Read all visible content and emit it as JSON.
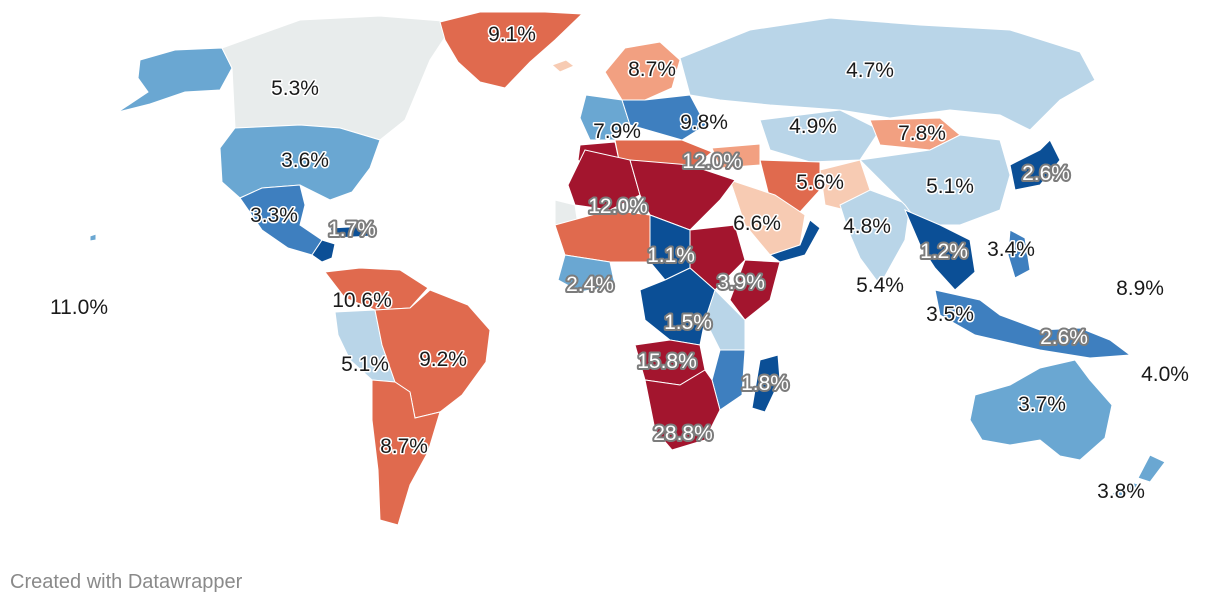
{
  "map": {
    "colors": {
      "deep_red": "#a3152e",
      "red": "#e06a4e",
      "salmon": "#f2a081",
      "peach": "#f7cbb3",
      "neutral": "#e8ecec",
      "light_blue": "#b9d5e8",
      "blue": "#6aa7d2",
      "mid_blue": "#3e7fbf",
      "dark_blue": "#0b4f96"
    },
    "labels": [
      {
        "text": "9.1%"
      },
      {
        "text": "8.7%"
      },
      {
        "text": "4.7%"
      },
      {
        "text": "5.3%"
      },
      {
        "text": "9.8%"
      },
      {
        "text": "7.9%"
      },
      {
        "text": "4.9%"
      },
      {
        "text": "7.8%"
      },
      {
        "text": "3.6%"
      },
      {
        "text": "12.0%"
      },
      {
        "text": "2.6%"
      },
      {
        "text": "5.6%"
      },
      {
        "text": "5.1%"
      },
      {
        "text": "12.0%"
      },
      {
        "text": "3.3%"
      },
      {
        "text": "1.7%"
      },
      {
        "text": "6.6%"
      },
      {
        "text": "4.8%"
      },
      {
        "text": "1.1%"
      },
      {
        "text": "1.2%"
      },
      {
        "text": "3.4%"
      },
      {
        "text": "2.4%"
      },
      {
        "text": "3.9%"
      },
      {
        "text": "5.4%"
      },
      {
        "text": "8.9%"
      },
      {
        "text": "11.0%"
      },
      {
        "text": "10.6%"
      },
      {
        "text": "1.5%"
      },
      {
        "text": "3.5%"
      },
      {
        "text": "2.6%"
      },
      {
        "text": "5.1%"
      },
      {
        "text": "9.2%"
      },
      {
        "text": "15.8%"
      },
      {
        "text": "4.0%"
      },
      {
        "text": "1.8%"
      },
      {
        "text": "3.7%"
      },
      {
        "text": "28.8%"
      },
      {
        "text": "8.7%"
      },
      {
        "text": "3.8%"
      }
    ]
  },
  "footer": {
    "credit": "Created with Datawrapper"
  }
}
